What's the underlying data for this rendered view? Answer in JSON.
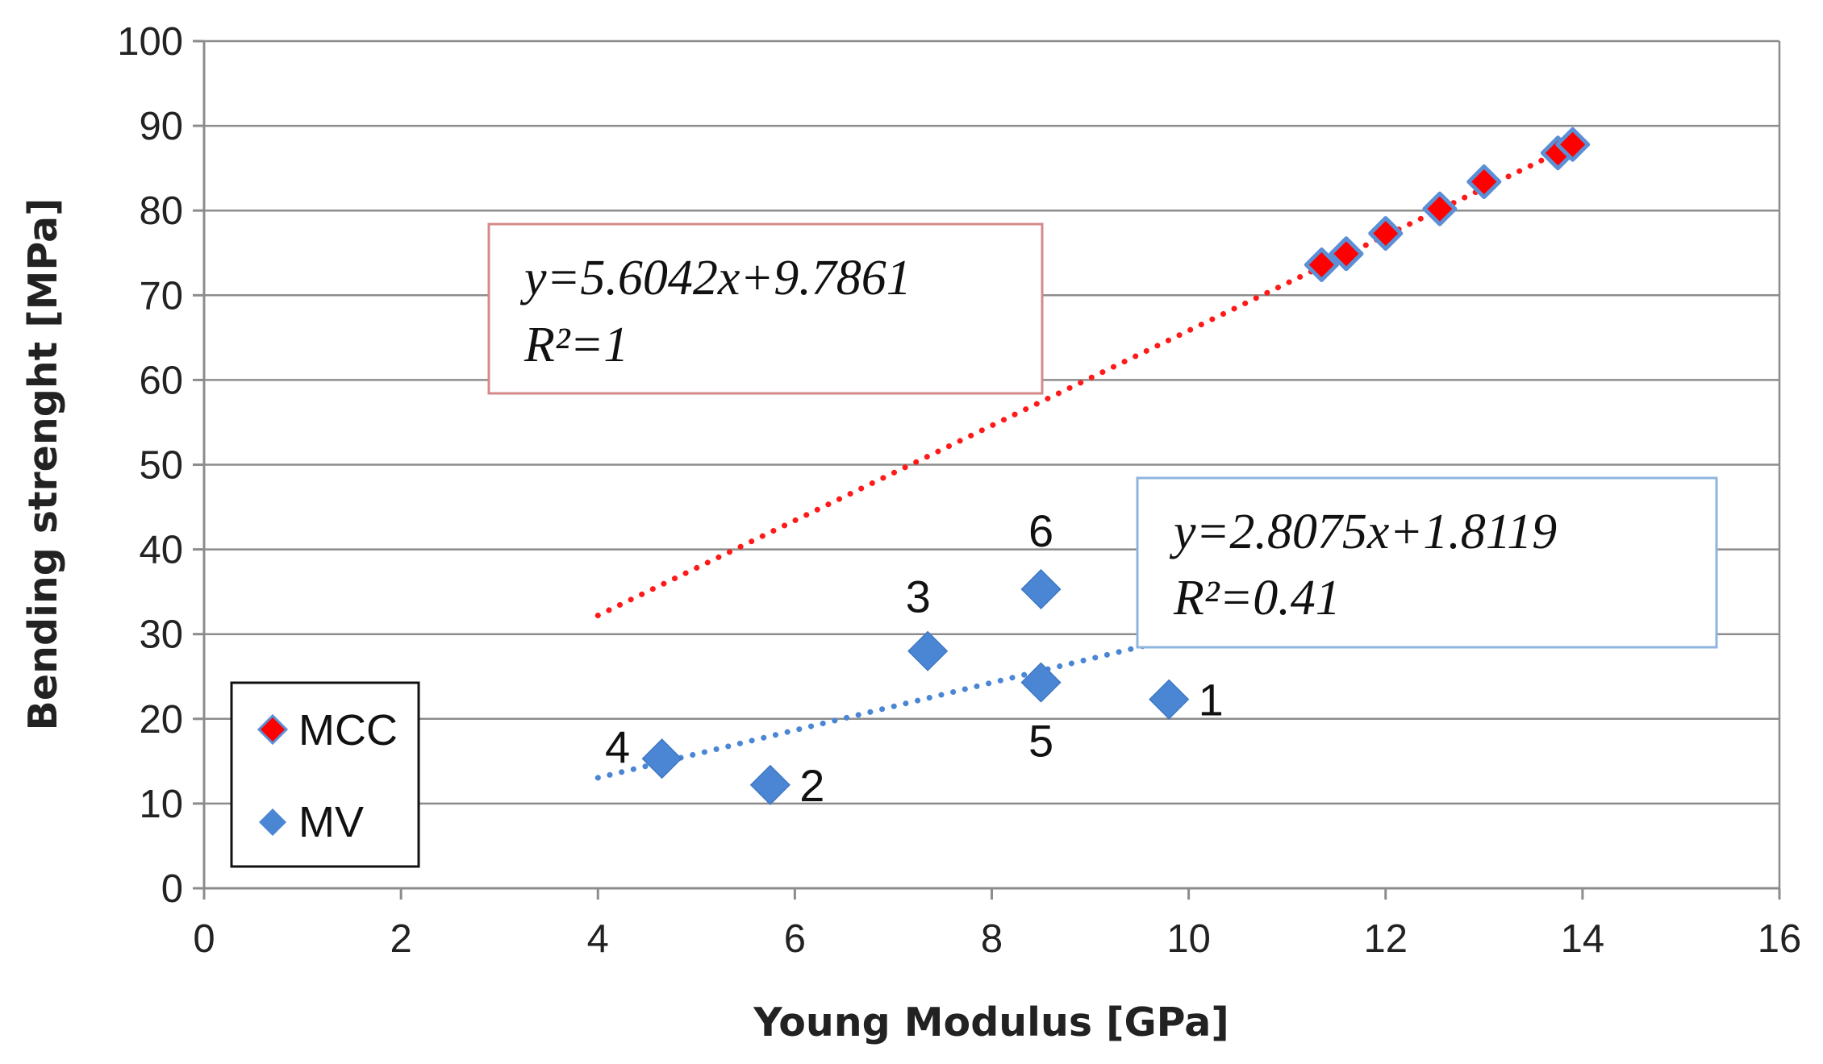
{
  "chart_data": {
    "type": "scatter",
    "title": "",
    "xlabel": "Young Modulus [GPa]",
    "ylabel": "Bending strenght [MPa]",
    "xlim": [
      0,
      16
    ],
    "ylim": [
      0,
      100
    ],
    "x_ticks": [
      0,
      2,
      4,
      6,
      8,
      10,
      12,
      14,
      16
    ],
    "y_ticks": [
      0,
      10,
      20,
      30,
      40,
      50,
      60,
      70,
      80,
      90,
      100
    ],
    "grid": "horizontal",
    "legend_position": "bottom-left",
    "series": [
      {
        "name": "MCC",
        "color": "#ff0000",
        "edge_color": "#5b8fd6",
        "marker": "diamond",
        "points": [
          {
            "x": 11.35,
            "y": 73.6
          },
          {
            "x": 11.6,
            "y": 74.9
          },
          {
            "x": 12.0,
            "y": 77.3
          },
          {
            "x": 12.55,
            "y": 80.2
          },
          {
            "x": 13.0,
            "y": 83.4
          },
          {
            "x": 13.75,
            "y": 86.8
          },
          {
            "x": 13.9,
            "y": 87.8
          }
        ],
        "trendline": {
          "slope": 5.6042,
          "intercept": 9.7861,
          "x_range": [
            4,
            13.9
          ],
          "equation": "y=5.6042x+9.7861",
          "r_squared_label": "R²=1",
          "label_position": "upper-left"
        }
      },
      {
        "name": "MV",
        "color": "#4a86d4",
        "marker": "diamond",
        "points": [
          {
            "x": 9.8,
            "y": 22.3,
            "label": "1"
          },
          {
            "x": 5.75,
            "y": 12.2,
            "label": "2"
          },
          {
            "x": 7.35,
            "y": 28.0,
            "label": "3"
          },
          {
            "x": 4.65,
            "y": 15.3,
            "label": "4"
          },
          {
            "x": 8.5,
            "y": 24.3,
            "label": "5"
          },
          {
            "x": 8.5,
            "y": 35.3,
            "label": "6"
          }
        ],
        "trendline": {
          "slope": 2.8075,
          "intercept": 1.8119,
          "x_range": [
            4,
            9.9
          ],
          "equation": "y=2.8075x+1.8119",
          "r_squared_label": "R²=0.41",
          "label_position": "center-right"
        }
      }
    ]
  },
  "colors": {
    "mcc_fill": "#ff0000",
    "mcc_edge": "#5b8fd6",
    "mv_fill": "#4a86d4",
    "mcc_box_border": "#d48a8a",
    "mv_box_border": "#8fb4de",
    "grid": "#8c8c8c"
  }
}
